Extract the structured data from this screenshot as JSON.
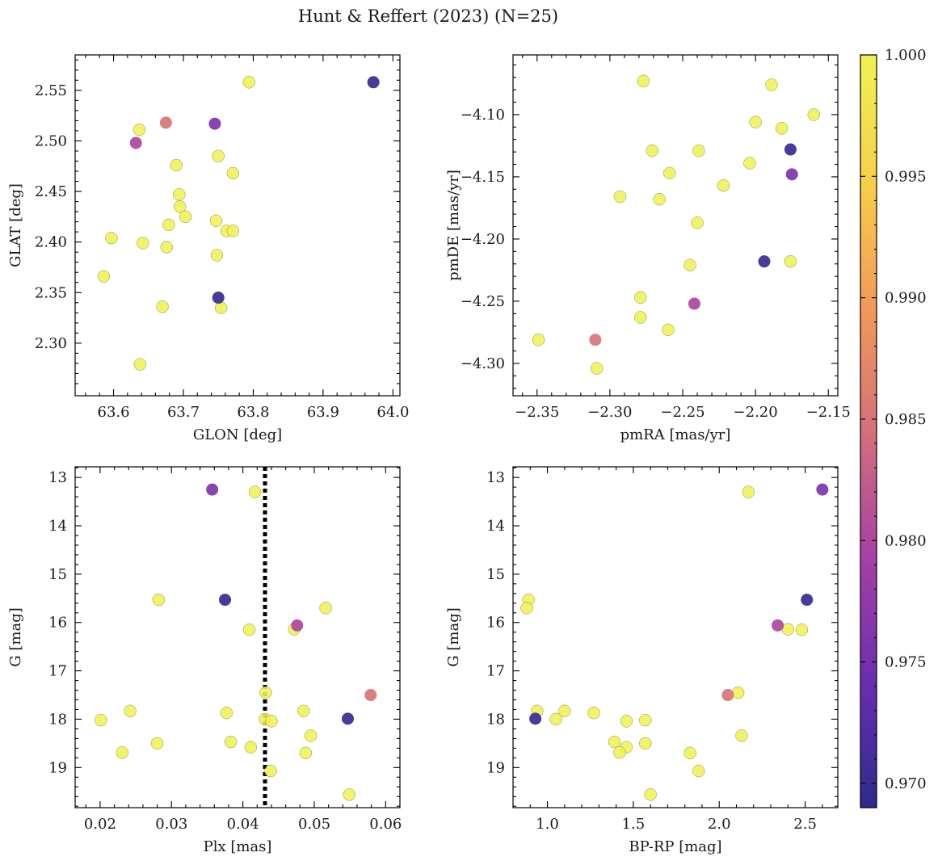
{
  "figure": {
    "title": "Hunt & Reffert (2023) (N=25)"
  },
  "colorbar": {
    "range": [
      0.969,
      1.0
    ],
    "ticks": [
      0.97,
      0.975,
      0.98,
      0.985,
      0.99,
      0.995,
      1.0
    ],
    "tick_labels": [
      "0.970",
      "0.975",
      "0.980",
      "0.985",
      "0.990",
      "0.995",
      "1.000"
    ],
    "colormap": "plasma",
    "stops": [
      "#2c2a8c",
      "#6a2eb0",
      "#a640a6",
      "#d4707a",
      "#f39a5a",
      "#f7d04a",
      "#f0f252"
    ]
  },
  "chart_data": [
    {
      "type": "scatter",
      "xlabel": "GLON [deg]",
      "ylabel": "GLAT [deg]",
      "xlim": [
        63.545,
        64.01
      ],
      "ylim": [
        2.248,
        2.585
      ],
      "xticks": [
        63.6,
        63.7,
        63.8,
        63.9,
        64.0
      ],
      "xtick_labels": [
        "63.6",
        "63.7",
        "63.8",
        "63.9",
        "64.0"
      ],
      "yticks": [
        2.3,
        2.35,
        2.4,
        2.45,
        2.5,
        2.55
      ],
      "ytick_labels": [
        "2.30",
        "2.35",
        "2.40",
        "2.45",
        "2.50",
        "2.55"
      ],
      "points": [
        {
          "x": 63.794,
          "y": 2.558,
          "c": 1.0
        },
        {
          "x": 63.972,
          "y": 2.558,
          "c": 0.97
        },
        {
          "x": 63.675,
          "y": 2.518,
          "c": 0.985
        },
        {
          "x": 63.745,
          "y": 2.517,
          "c": 0.976
        },
        {
          "x": 63.637,
          "y": 2.511,
          "c": 1.0
        },
        {
          "x": 63.632,
          "y": 2.498,
          "c": 0.98
        },
        {
          "x": 63.75,
          "y": 2.485,
          "c": 1.0
        },
        {
          "x": 63.69,
          "y": 2.476,
          "c": 1.0
        },
        {
          "x": 63.771,
          "y": 2.468,
          "c": 1.0
        },
        {
          "x": 63.694,
          "y": 2.447,
          "c": 1.0
        },
        {
          "x": 63.695,
          "y": 2.435,
          "c": 1.0
        },
        {
          "x": 63.703,
          "y": 2.425,
          "c": 1.0
        },
        {
          "x": 63.747,
          "y": 2.421,
          "c": 1.0
        },
        {
          "x": 63.679,
          "y": 2.417,
          "c": 1.0
        },
        {
          "x": 63.762,
          "y": 2.411,
          "c": 1.0
        },
        {
          "x": 63.771,
          "y": 2.411,
          "c": 1.0
        },
        {
          "x": 63.597,
          "y": 2.404,
          "c": 1.0
        },
        {
          "x": 63.642,
          "y": 2.399,
          "c": 1.0
        },
        {
          "x": 63.676,
          "y": 2.395,
          "c": 1.0
        },
        {
          "x": 63.748,
          "y": 2.387,
          "c": 1.0
        },
        {
          "x": 63.586,
          "y": 2.366,
          "c": 1.0
        },
        {
          "x": 63.75,
          "y": 2.345,
          "c": 0.97
        },
        {
          "x": 63.67,
          "y": 2.336,
          "c": 1.0
        },
        {
          "x": 63.754,
          "y": 2.335,
          "c": 1.0
        },
        {
          "x": 63.638,
          "y": 2.279,
          "c": 1.0
        }
      ]
    },
    {
      "type": "scatter",
      "xlabel": "pmRA [mas/yr]",
      "ylabel": "pmDE [mas/yr]",
      "xlim": [
        -2.3665,
        -2.1435
      ],
      "ylim": [
        -4.326,
        -4.052
      ],
      "xticks": [
        -2.35,
        -2.3,
        -2.25,
        -2.2,
        -2.15
      ],
      "xtick_labels": [
        "−2.35",
        "−2.30",
        "−2.25",
        "−2.20",
        "−2.15"
      ],
      "yticks": [
        -4.3,
        -4.25,
        -4.2,
        -4.15,
        -4.1
      ],
      "ytick_labels": [
        "−4.30",
        "−4.25",
        "−4.20",
        "−4.15",
        "−4.10"
      ],
      "points": [
        {
          "x": -2.277,
          "y": -4.073,
          "c": 1.0
        },
        {
          "x": -2.189,
          "y": -4.076,
          "c": 1.0
        },
        {
          "x": -2.2,
          "y": -4.106,
          "c": 1.0
        },
        {
          "x": -2.16,
          "y": -4.1,
          "c": 1.0
        },
        {
          "x": -2.182,
          "y": -4.111,
          "c": 1.0
        },
        {
          "x": -2.271,
          "y": -4.129,
          "c": 1.0
        },
        {
          "x": -2.239,
          "y": -4.129,
          "c": 1.0
        },
        {
          "x": -2.176,
          "y": -4.128,
          "c": 0.97
        },
        {
          "x": -2.204,
          "y": -4.139,
          "c": 1.0
        },
        {
          "x": -2.259,
          "y": -4.147,
          "c": 1.0
        },
        {
          "x": -2.175,
          "y": -4.148,
          "c": 0.976
        },
        {
          "x": -2.222,
          "y": -4.157,
          "c": 1.0
        },
        {
          "x": -2.293,
          "y": -4.166,
          "c": 1.0
        },
        {
          "x": -2.266,
          "y": -4.168,
          "c": 1.0
        },
        {
          "x": -2.24,
          "y": -4.187,
          "c": 1.0
        },
        {
          "x": -2.194,
          "y": -4.218,
          "c": 0.97
        },
        {
          "x": -2.176,
          "y": -4.218,
          "c": 1.0
        },
        {
          "x": -2.245,
          "y": -4.221,
          "c": 1.0
        },
        {
          "x": -2.279,
          "y": -4.247,
          "c": 1.0
        },
        {
          "x": -2.242,
          "y": -4.252,
          "c": 0.98
        },
        {
          "x": -2.279,
          "y": -4.263,
          "c": 1.0
        },
        {
          "x": -2.26,
          "y": -4.273,
          "c": 1.0
        },
        {
          "x": -2.349,
          "y": -4.281,
          "c": 1.0
        },
        {
          "x": -2.31,
          "y": -4.281,
          "c": 0.985
        },
        {
          "x": -2.309,
          "y": -4.304,
          "c": 1.0
        }
      ]
    },
    {
      "type": "scatter",
      "xlabel": "Plx [mas]",
      "ylabel": "G [mag]",
      "xlim": [
        0.0165,
        0.062
      ],
      "ylim": [
        19.83,
        12.78
      ],
      "xticks": [
        0.02,
        0.03,
        0.04,
        0.05,
        0.06
      ],
      "xtick_labels": [
        "0.02",
        "0.03",
        "0.04",
        "0.05",
        "0.06"
      ],
      "yticks": [
        13,
        14,
        15,
        16,
        17,
        18,
        19
      ],
      "ytick_labels": [
        "13",
        "14",
        "15",
        "16",
        "17",
        "18",
        "19"
      ],
      "vline_x": 0.0431,
      "points": [
        {
          "x": 0.0357,
          "y": 13.25,
          "c": 0.976
        },
        {
          "x": 0.0417,
          "y": 13.3,
          "c": 1.0
        },
        {
          "x": 0.0282,
          "y": 15.53,
          "c": 1.0
        },
        {
          "x": 0.0375,
          "y": 15.53,
          "c": 0.97
        },
        {
          "x": 0.0516,
          "y": 15.7,
          "c": 1.0
        },
        {
          "x": 0.0476,
          "y": 16.06,
          "c": 0.98
        },
        {
          "x": 0.0409,
          "y": 16.15,
          "c": 1.0
        },
        {
          "x": 0.0472,
          "y": 16.14,
          "c": 1.0
        },
        {
          "x": 0.0432,
          "y": 17.45,
          "c": 1.0
        },
        {
          "x": 0.0579,
          "y": 17.5,
          "c": 0.985
        },
        {
          "x": 0.0242,
          "y": 17.83,
          "c": 1.0
        },
        {
          "x": 0.0377,
          "y": 17.87,
          "c": 1.0
        },
        {
          "x": 0.0485,
          "y": 17.83,
          "c": 1.0
        },
        {
          "x": 0.0201,
          "y": 18.02,
          "c": 1.0
        },
        {
          "x": 0.0431,
          "y": 18.0,
          "c": 1.0
        },
        {
          "x": 0.044,
          "y": 18.04,
          "c": 1.0
        },
        {
          "x": 0.0547,
          "y": 17.99,
          "c": 0.97
        },
        {
          "x": 0.0495,
          "y": 18.34,
          "c": 1.0
        },
        {
          "x": 0.028,
          "y": 18.5,
          "c": 1.0
        },
        {
          "x": 0.0383,
          "y": 18.47,
          "c": 1.0
        },
        {
          "x": 0.0411,
          "y": 18.58,
          "c": 1.0
        },
        {
          "x": 0.0231,
          "y": 18.69,
          "c": 1.0
        },
        {
          "x": 0.0488,
          "y": 18.7,
          "c": 1.0
        },
        {
          "x": 0.0439,
          "y": 19.07,
          "c": 1.0
        },
        {
          "x": 0.0549,
          "y": 19.56,
          "c": 1.0
        }
      ]
    },
    {
      "type": "scatter",
      "xlabel": "BP-RP [mag]",
      "ylabel": "G [mag]",
      "xlim": [
        0.8,
        2.69
      ],
      "ylim": [
        19.83,
        12.78
      ],
      "xticks": [
        1.0,
        1.5,
        2.0,
        2.5
      ],
      "xtick_labels": [
        "1.0",
        "1.5",
        "2.0",
        "2.5"
      ],
      "yticks": [
        13,
        14,
        15,
        16,
        17,
        18,
        19
      ],
      "ytick_labels": [
        "13",
        "14",
        "15",
        "16",
        "17",
        "18",
        "19"
      ],
      "points": [
        {
          "x": 2.17,
          "y": 13.3,
          "c": 1.0
        },
        {
          "x": 2.6,
          "y": 13.25,
          "c": 0.976
        },
        {
          "x": 0.89,
          "y": 15.53,
          "c": 1.0
        },
        {
          "x": 0.88,
          "y": 15.7,
          "c": 1.0
        },
        {
          "x": 2.51,
          "y": 15.53,
          "c": 0.97
        },
        {
          "x": 2.34,
          "y": 16.06,
          "c": 0.98
        },
        {
          "x": 2.4,
          "y": 16.14,
          "c": 1.0
        },
        {
          "x": 2.48,
          "y": 16.15,
          "c": 1.0
        },
        {
          "x": 2.11,
          "y": 17.45,
          "c": 1.0
        },
        {
          "x": 2.05,
          "y": 17.5,
          "c": 0.985
        },
        {
          "x": 0.94,
          "y": 17.83,
          "c": 1.0
        },
        {
          "x": 1.1,
          "y": 17.83,
          "c": 1.0
        },
        {
          "x": 1.27,
          "y": 17.87,
          "c": 1.0
        },
        {
          "x": 0.93,
          "y": 17.99,
          "c": 0.97
        },
        {
          "x": 1.05,
          "y": 18.0,
          "c": 1.0
        },
        {
          "x": 1.46,
          "y": 18.04,
          "c": 1.0
        },
        {
          "x": 1.57,
          "y": 18.02,
          "c": 1.0
        },
        {
          "x": 2.13,
          "y": 18.34,
          "c": 1.0
        },
        {
          "x": 1.39,
          "y": 18.47,
          "c": 1.0
        },
        {
          "x": 1.57,
          "y": 18.5,
          "c": 1.0
        },
        {
          "x": 1.46,
          "y": 18.58,
          "c": 1.0
        },
        {
          "x": 1.42,
          "y": 18.69,
          "c": 1.0
        },
        {
          "x": 1.83,
          "y": 18.7,
          "c": 1.0
        },
        {
          "x": 1.88,
          "y": 19.07,
          "c": 1.0
        },
        {
          "x": 1.6,
          "y": 19.56,
          "c": 1.0
        }
      ]
    }
  ]
}
